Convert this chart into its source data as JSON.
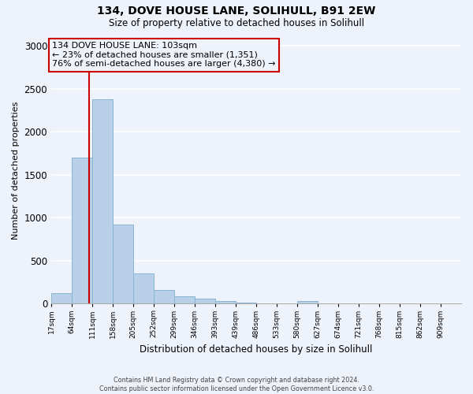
{
  "title_line1": "134, DOVE HOUSE LANE, SOLIHULL, B91 2EW",
  "title_line2": "Size of property relative to detached houses in Solihull",
  "xlabel": "Distribution of detached houses by size in Solihull",
  "ylabel": "Number of detached properties",
  "footnote": "Contains HM Land Registry data © Crown copyright and database right 2024.\nContains public sector information licensed under the Open Government Licence v3.0.",
  "annotation_line1": "134 DOVE HOUSE LANE: 103sqm",
  "annotation_line2": "← 23% of detached houses are smaller (1,351)",
  "annotation_line3": "76% of semi-detached houses are larger (4,380) →",
  "property_size": 103,
  "bin_edges": [
    17,
    64,
    111,
    158,
    205,
    252,
    299,
    346,
    393,
    439,
    486,
    533,
    580,
    627,
    674,
    721,
    768,
    815,
    862,
    909,
    956
  ],
  "bar_values": [
    120,
    1700,
    2380,
    920,
    350,
    155,
    85,
    55,
    35,
    10,
    5,
    5,
    30,
    5,
    5,
    5,
    5,
    5,
    5,
    5
  ],
  "bar_color": "#b8d0e8",
  "bar_edge_color": "#8ab4d4",
  "vline_color": "#cc0000",
  "annotation_box_edge_color": "#cc0000",
  "background_color": "#eef2fa",
  "grid_color": "#ffffff",
  "ylim": [
    0,
    3100
  ],
  "yticks": [
    0,
    500,
    1000,
    1500,
    2000,
    2500,
    3000
  ]
}
